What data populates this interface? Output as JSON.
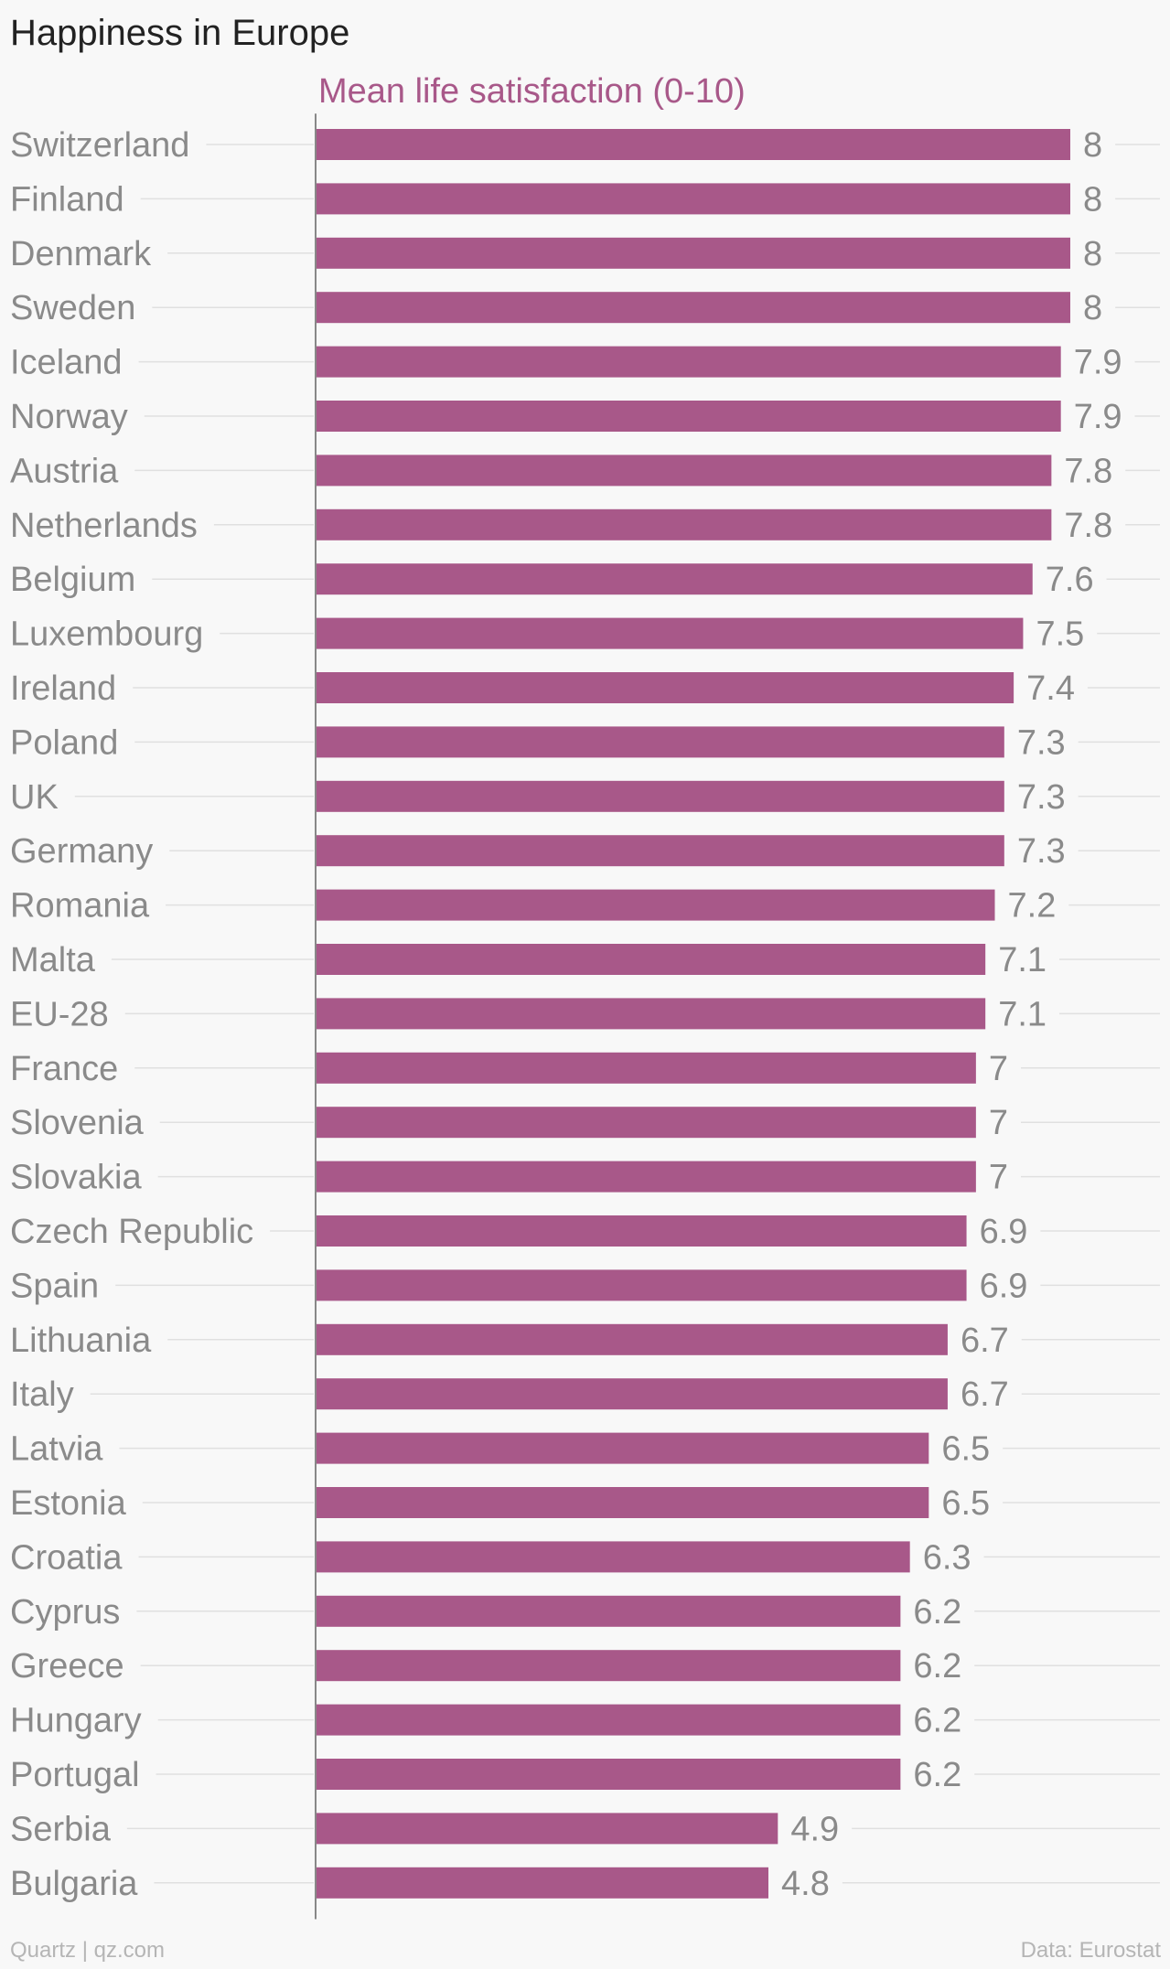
{
  "title": "Happiness in Europe",
  "footer": {
    "credit": "Quartz | qz.com",
    "source": "Data: Eurostat"
  },
  "colors": {
    "bar": "#a85889",
    "series_label": "#a85889",
    "category_label": "#8a8a8a",
    "value_label": "#8a8a8a",
    "title": "#222222",
    "footer": "#b5b5b5",
    "axis": "#888888",
    "guide": "#e0e0e0"
  },
  "chart_data": {
    "type": "bar",
    "orientation": "horizontal",
    "series_label": "Mean life satisfaction (0-10)",
    "categories": [
      "Switzerland",
      "Finland",
      "Denmark",
      "Sweden",
      "Iceland",
      "Norway",
      "Austria",
      "Netherlands",
      "Belgium",
      "Luxembourg",
      "Ireland",
      "Poland",
      "UK",
      "Germany",
      "Romania",
      "Malta",
      "EU-28",
      "France",
      "Slovenia",
      "Slovakia",
      "Czech Republic",
      "Spain",
      "Lithuania",
      "Italy",
      "Latvia",
      "Estonia",
      "Croatia",
      "Cyprus",
      "Greece",
      "Hungary",
      "Portugal",
      "Serbia",
      "Bulgaria"
    ],
    "values": [
      8,
      8,
      8,
      8,
      7.9,
      7.9,
      7.8,
      7.8,
      7.6,
      7.5,
      7.4,
      7.3,
      7.3,
      7.3,
      7.2,
      7.1,
      7.1,
      7,
      7,
      7,
      6.9,
      6.9,
      6.7,
      6.7,
      6.5,
      6.5,
      6.3,
      6.2,
      6.2,
      6.2,
      6.2,
      4.9,
      4.8
    ],
    "value_labels": [
      "8",
      "8",
      "8",
      "8",
      "7.9",
      "7.9",
      "7.8",
      "7.8",
      "7.6",
      "7.5",
      "7.4",
      "7.3",
      "7.3",
      "7.3",
      "7.2",
      "7.1",
      "7.1",
      "7",
      "7",
      "7",
      "6.9",
      "6.9",
      "6.7",
      "6.7",
      "6.5",
      "6.5",
      "6.3",
      "6.2",
      "6.2",
      "6.2",
      "6.2",
      "4.9",
      "4.8"
    ],
    "xlim": [
      0,
      8
    ],
    "grid": false,
    "legend": "none"
  }
}
